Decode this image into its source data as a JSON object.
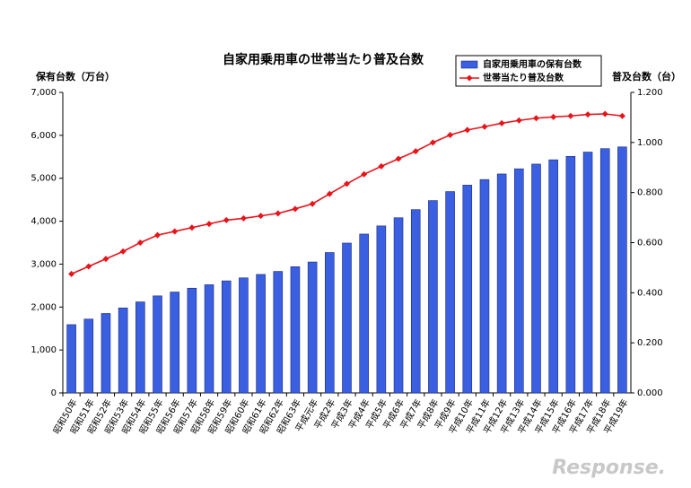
{
  "chart_data": {
    "type": "bar",
    "title": "自家用乗用車の世帯当たり普及台数",
    "y_label": "保有台数（万台）",
    "y2_label": "普及台数（台）",
    "categories": [
      "昭和50年",
      "昭和51年",
      "昭和52年",
      "昭和53年",
      "昭和54年",
      "昭和55年",
      "昭和56年",
      "昭和57年",
      "昭和58年",
      "昭和59年",
      "昭和60年",
      "昭和61年",
      "昭和62年",
      "昭和63年",
      "平成元年",
      "平成2年",
      "平成3年",
      "平成4年",
      "平成5年",
      "平成6年",
      "平成7年",
      "平成8年",
      "平成9年",
      "平成10年",
      "平成11年",
      "平成12年",
      "平成13年",
      "平成14年",
      "平成15年",
      "平成16年",
      "平成17年",
      "平成18年",
      "平成19年"
    ],
    "series": [
      {
        "name": "自家用乗用車の保有台数",
        "type": "bar",
        "color": "#3a5fe0",
        "values": [
          1590,
          1720,
          1850,
          1980,
          2120,
          2260,
          2350,
          2440,
          2520,
          2610,
          2680,
          2760,
          2830,
          2940,
          3050,
          3270,
          3490,
          3700,
          3890,
          4080,
          4270,
          4480,
          4690,
          4840,
          4970,
          5100,
          5220,
          5330,
          5430,
          5510,
          5610,
          5690,
          5730
        ]
      },
      {
        "name": "世帯当たり普及台数",
        "type": "line",
        "axis": "y2",
        "color": "#e8141b",
        "values": [
          0.475,
          0.505,
          0.535,
          0.565,
          0.6,
          0.63,
          0.645,
          0.66,
          0.675,
          0.69,
          0.697,
          0.707,
          0.717,
          0.735,
          0.755,
          0.795,
          0.835,
          0.873,
          0.905,
          0.935,
          0.965,
          1.0,
          1.03,
          1.05,
          1.063,
          1.077,
          1.088,
          1.097,
          1.102,
          1.106,
          1.112,
          1.114,
          1.106
        ]
      }
    ],
    "ylim": [
      0,
      7000
    ],
    "yticks": [
      0,
      {
        "value": 1000,
        "label": "1,000"
      },
      {
        "value": 2000,
        "label": "2,000"
      },
      {
        "value": 3000,
        "label": "3,000"
      },
      {
        "value": 4000,
        "label": "4,000"
      },
      {
        "value": 5000,
        "label": "5,000"
      },
      {
        "value": 6000,
        "label": "6,000"
      },
      {
        "value": 7000,
        "label": "7,000"
      }
    ],
    "y2lim": [
      0,
      1.2
    ],
    "y2ticks": [
      {
        "value": 0,
        "label": "0.000"
      },
      {
        "value": 0.2,
        "label": "0.200"
      },
      {
        "value": 0.4,
        "label": "0.400"
      },
      {
        "value": 0.6,
        "label": "0.600"
      },
      {
        "value": 0.8,
        "label": "0.800"
      },
      {
        "value": 1.0,
        "label": "1.000"
      },
      {
        "value": 1.2,
        "label": "1.200"
      }
    ],
    "watermark": "Response."
  }
}
